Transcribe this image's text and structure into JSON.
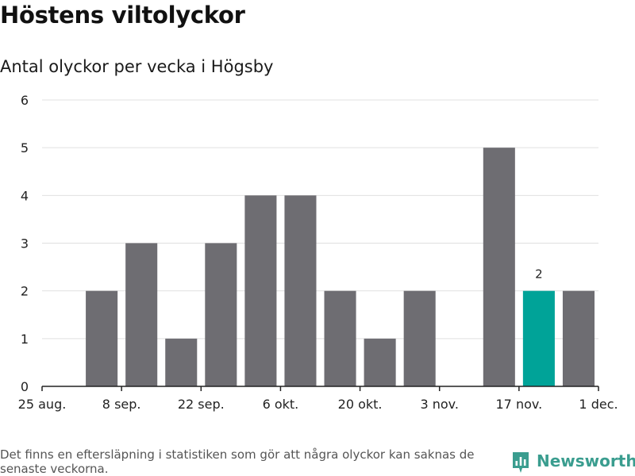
{
  "title": "Höstens viltolyckor",
  "subtitle": "Antal olyckor per vecka i Högsby",
  "footnote": "Det finns en eftersläpning i statistiken som gör att några olyckor kan saknas de senaste veckorna.",
  "brand": {
    "name": "Newsworthy",
    "icon": "newsworthy-logo-icon",
    "color": "#3a9d8f"
  },
  "colors": {
    "bar": "#6e6d72",
    "highlight": "#00a398",
    "grid": "#e0e0e0",
    "axis": "#222222",
    "text": "#222222"
  },
  "chart_data": {
    "type": "bar",
    "title": "Höstens viltolyckor",
    "subtitle": "Antal olyckor per vecka i Högsby",
    "xlabel": "",
    "ylabel": "",
    "ylim": [
      0,
      6
    ],
    "yticks": [
      "0",
      "1",
      "2",
      "3",
      "4",
      "5",
      "6"
    ],
    "categories": [
      "2024-08-26",
      "2024-09-02",
      "2024-09-09",
      "2024-09-16",
      "2024-09-23",
      "2024-09-30",
      "2024-10-07",
      "2024-10-14",
      "2024-10-21",
      "2024-10-28",
      "2024-11-04",
      "2024-11-11",
      "2024-11-18",
      "2024-11-25"
    ],
    "values": [
      0,
      2,
      3,
      1,
      3,
      4,
      4,
      2,
      1,
      2,
      0,
      5,
      2,
      2
    ],
    "highlight": "2024-11-18",
    "highlight_label": "2",
    "xticks": [
      "25 aug.",
      "8 sep.",
      "22 sep.",
      "6 okt.",
      "20 okt.",
      "3 nov.",
      "17 nov.",
      "1 dec."
    ],
    "grid": true,
    "legend": "none"
  }
}
